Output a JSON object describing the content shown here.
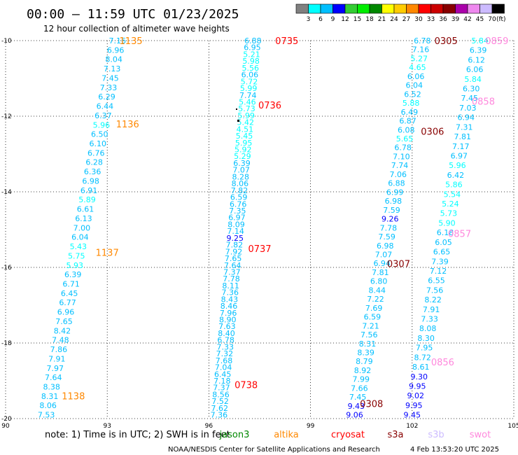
{
  "header": {
    "title": "00:00 — 11:59 UTC 01/23/2025",
    "subtitle": "12 hour collection of altimeter wave heights"
  },
  "legend": {
    "labels": [
      "3",
      "6",
      "9",
      "12",
      "15",
      "18",
      "21",
      "24",
      "27",
      "30",
      "33",
      "36",
      "39",
      "42",
      "45",
      "70"
    ],
    "unit": "(ft)",
    "colors": [
      "#808080",
      "#00ffff",
      "#00bfff",
      "#0000ff",
      "#33cc33",
      "#00ee00",
      "#008800",
      "#ffff00",
      "#ffcc00",
      "#ff8800",
      "#ff0000",
      "#cc0000",
      "#880000",
      "#aa00aa",
      "#ee88ee",
      "#ccbbff",
      "#000000"
    ]
  },
  "axes": {
    "x_ticks": [
      "90",
      "93",
      "96",
      "99",
      "102",
      "105"
    ],
    "y_ticks": [
      "-10",
      "-12",
      "-14",
      "-16",
      "-18",
      "-20"
    ]
  },
  "footer": {
    "note": "note:  1) Time is in UTC; 2) SWH is in feet",
    "satellites": [
      {
        "name": "jason3",
        "color": "#008800"
      },
      {
        "name": "altika",
        "color": "#ff8800"
      },
      {
        "name": "cryosat",
        "color": "#ff0000"
      },
      {
        "name": "s3a",
        "color": "#880000"
      },
      {
        "name": "s3b",
        "color": "#ccbbff"
      },
      {
        "name": "swot",
        "color": "#ff88dd"
      }
    ],
    "credit": "NOAA/NESDIS Center for Satellite Applications and Research",
    "timestamp": "4 Feb 13:53:20 UTC 2025"
  },
  "passes": [
    {
      "label": "1135",
      "color": "#ff8800",
      "lon": 93.7,
      "lat": -10.0
    },
    {
      "label": "1136",
      "color": "#ff8800",
      "lon": 93.6,
      "lat": -12.2
    },
    {
      "label": "1137",
      "color": "#ff8800",
      "lon": 93.0,
      "lat": -15.6
    },
    {
      "label": "1138",
      "color": "#ff8800",
      "lon": 92.0,
      "lat": -19.4
    },
    {
      "label": "0735",
      "color": "#ff0000",
      "lon": 98.3,
      "lat": -10.0
    },
    {
      "label": "0736",
      "color": "#ff0000",
      "lon": 97.8,
      "lat": -11.7
    },
    {
      "label": "0737",
      "color": "#ff0000",
      "lon": 97.5,
      "lat": -15.5
    },
    {
      "label": "0738",
      "color": "#ff0000",
      "lon": 97.1,
      "lat": -19.1
    },
    {
      "label": "0305",
      "color": "#880000",
      "lon": 103.0,
      "lat": -10.0
    },
    {
      "label": "0306",
      "color": "#880000",
      "lon": 102.6,
      "lat": -12.4
    },
    {
      "label": "0307",
      "color": "#880000",
      "lon": 101.6,
      "lat": -15.9
    },
    {
      "label": "0308",
      "color": "#880000",
      "lon": 100.8,
      "lat": -19.6
    },
    {
      "label": "0859",
      "color": "#ff88dd",
      "lon": 104.5,
      "lat": -10.0
    },
    {
      "label": "0858",
      "color": "#ff88dd",
      "lon": 104.1,
      "lat": -11.6
    },
    {
      "label": "0857",
      "color": "#ff88dd",
      "lon": 103.4,
      "lat": -15.1
    },
    {
      "label": "0856",
      "color": "#ff88dd",
      "lon": 102.9,
      "lat": -18.5
    }
  ],
  "tracks": [
    {
      "name": "altika-track",
      "start": [
        93.3,
        -10.0
      ],
      "end": [
        91.2,
        -19.9
      ],
      "values": [
        "7.16",
        "6.96",
        "8.04",
        "7.13",
        "7.45",
        "7.33",
        "6.29",
        "6.44",
        "6.37",
        "5.96",
        "6.50",
        "6.10",
        "6.76",
        "6.28",
        "6.36",
        "6.98",
        "6.91",
        "5.89",
        "6.61",
        "6.13",
        "7.00",
        "6.04",
        "5.43",
        "5.75",
        "5.93",
        "6.39",
        "6.71",
        "6.45",
        "6.77",
        "6.96",
        "7.65",
        "8.42",
        "7.48",
        "7.86",
        "7.91",
        "7.97",
        "7.64",
        "8.38",
        "8.31",
        "8.06",
        "7.53"
      ]
    },
    {
      "name": "cryosat-track",
      "start": [
        97.3,
        -10.0
      ],
      "end": [
        96.3,
        -19.9
      ],
      "values": [
        "6.88",
        "6.95",
        "5.21",
        "5.98",
        "5.56",
        "6.06",
        "5.72",
        "5.99",
        "7.74",
        "5.46",
        "5.73",
        "5.99",
        "5.42",
        "4.51",
        "5.45",
        "5.95",
        "5.92",
        "5.29",
        "6.39",
        "7.07",
        "8.28",
        "8.06",
        "7.82",
        "6.59",
        "6.76",
        "7.35",
        "6.97",
        "8.09",
        "7.14",
        "9.25",
        "7.82",
        "7.92",
        "7.65",
        "7.64",
        "7.37",
        "7.78",
        "8.11",
        "7.36",
        "8.43",
        "8.46",
        "7.96",
        "8.90",
        "7.63",
        "8.40",
        "6.78",
        "7.33",
        "7.32",
        "7.68",
        "7.04",
        "6.45",
        "7.18",
        "7.37",
        "8.56",
        "7.52",
        "7.62",
        "7.36"
      ]
    },
    {
      "name": "s3a-track",
      "start": [
        102.3,
        -10.0
      ],
      "end": [
        100.3,
        -19.9
      ],
      "values": [
        "6.78",
        "7.16",
        "5.27",
        "4.65",
        "6.06",
        "6.04",
        "6.52",
        "5.88",
        "6.49",
        "6.87",
        "6.08",
        "5.65",
        "6.78",
        "7.10",
        "7.74",
        "7.06",
        "6.88",
        "6.99",
        "6.98",
        "7.59",
        "9.26",
        "7.78",
        "7.59",
        "6.98",
        "7.07",
        "6.94",
        "7.81",
        "6.80",
        "8.44",
        "7.22",
        "7.69",
        "6.59",
        "7.21",
        "7.56",
        "8.31",
        "8.39",
        "8.79",
        "8.92",
        "7.99",
        "7.66",
        "7.45",
        "9.43",
        "9.06"
      ]
    },
    {
      "name": "swot-track",
      "start": [
        104.0,
        -10.0
      ],
      "end": [
        102.0,
        -19.9
      ],
      "values": [
        "5.84",
        "6.39",
        "6.12",
        "6.06",
        "5.84",
        "6.30",
        "7.45",
        "7.03",
        "6.94",
        "7.31",
        "7.81",
        "7.17",
        "6.97",
        "5.96",
        "6.42",
        "5.86",
        "5.54",
        "5.24",
        "5.73",
        "5.90",
        "6.18",
        "6.05",
        "6.65",
        "7.39",
        "7.12",
        "6.55",
        "7.56",
        "8.22",
        "7.91",
        "7.33",
        "8.08",
        "8.30",
        "7.95",
        "8.72",
        "8.61",
        "9.30",
        "9.95",
        "9.02",
        "9.95",
        "9.45"
      ]
    }
  ]
}
